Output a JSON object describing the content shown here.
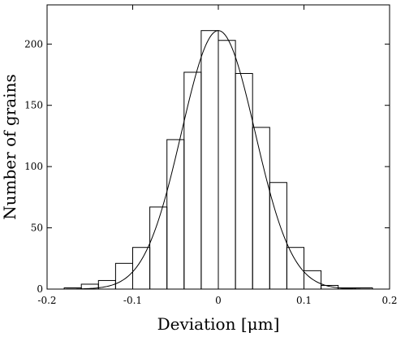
{
  "chart_data": {
    "type": "bar",
    "title": "",
    "xlabel": "Deviation [μm]",
    "ylabel": "Number of grains",
    "xlim": [
      -0.2,
      0.2
    ],
    "ylim": [
      0,
      232
    ],
    "grid": false,
    "x_ticks": [
      -0.2,
      -0.1,
      0,
      0.1,
      0.2
    ],
    "x_tick_labels": [
      "-0.2",
      "-0.1",
      "0",
      "0.1",
      "0.2"
    ],
    "y_ticks": [
      0,
      50,
      100,
      150,
      200
    ],
    "y_tick_labels": [
      "0",
      "50",
      "100",
      "150",
      "200"
    ],
    "bin_width": 0.02,
    "histogram": {
      "bin_edges": [
        -0.18,
        -0.16,
        -0.14,
        -0.12,
        -0.1,
        -0.08,
        -0.06,
        -0.04,
        -0.02,
        0.0,
        0.02,
        0.04,
        0.06,
        0.08,
        0.1,
        0.12,
        0.14,
        0.16,
        0.18
      ],
      "counts": [
        1,
        4,
        7,
        21,
        34,
        67,
        122,
        177,
        211,
        203,
        176,
        132,
        87,
        34,
        15,
        3,
        1,
        1
      ]
    },
    "fit_curve": {
      "type": "gaussian",
      "mean": 0,
      "sigma": 0.043,
      "peak": 211
    }
  }
}
